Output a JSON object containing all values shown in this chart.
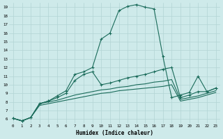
{
  "xlabel": "Humidex (Indice chaleur)",
  "bg_color": "#ceeaea",
  "grid_color": "#b2d4d4",
  "line_color": "#1a6b5a",
  "xlim_min": -0.5,
  "xlim_max": 23.5,
  "ylim_min": 5.5,
  "ylim_max": 19.5,
  "yticks": [
    6,
    7,
    8,
    9,
    10,
    11,
    12,
    13,
    14,
    15,
    16,
    17,
    18,
    19
  ],
  "xticks": [
    0,
    1,
    2,
    3,
    4,
    5,
    6,
    7,
    8,
    9,
    10,
    11,
    12,
    13,
    14,
    15,
    16,
    17,
    18,
    19,
    20,
    21,
    22,
    23
  ],
  "line_main_x": [
    0,
    1,
    2,
    3,
    4,
    5,
    6,
    7,
    8,
    9,
    10,
    11,
    12,
    13,
    14,
    15,
    16,
    17,
    18,
    19,
    20,
    21,
    22,
    23
  ],
  "line_main_y": [
    6.1,
    5.8,
    6.2,
    7.8,
    8.1,
    8.7,
    9.3,
    11.2,
    11.5,
    12.0,
    15.3,
    16.0,
    18.6,
    19.1,
    19.3,
    19.0,
    18.8,
    13.3,
    8.5,
    8.8,
    9.1,
    11.0,
    9.2,
    9.6
  ],
  "line2_x": [
    0,
    1,
    2,
    3,
    4,
    5,
    6,
    7,
    8,
    9,
    10,
    11,
    12,
    13,
    14,
    15,
    16,
    17,
    18,
    19,
    20,
    21,
    22,
    23
  ],
  "line2_y": [
    6.1,
    5.8,
    6.2,
    7.8,
    8.1,
    8.5,
    9.0,
    10.5,
    11.2,
    11.5,
    10.0,
    10.2,
    10.5,
    10.8,
    11.0,
    11.2,
    11.5,
    11.8,
    12.0,
    8.5,
    8.8,
    9.2,
    9.2,
    9.6
  ],
  "line3_x": [
    0,
    1,
    2,
    3,
    4,
    5,
    6,
    7,
    8,
    9,
    10,
    11,
    12,
    13,
    14,
    15,
    16,
    17,
    18,
    19,
    20,
    21,
    22,
    23
  ],
  "line3_y": [
    6.1,
    5.8,
    6.2,
    7.8,
    8.0,
    8.2,
    8.5,
    8.8,
    9.0,
    9.2,
    9.4,
    9.5,
    9.7,
    9.8,
    10.0,
    10.1,
    10.3,
    10.4,
    10.6,
    8.3,
    8.5,
    8.7,
    9.0,
    9.3
  ],
  "line4_x": [
    0,
    1,
    2,
    3,
    4,
    5,
    6,
    7,
    8,
    9,
    10,
    11,
    12,
    13,
    14,
    15,
    16,
    17,
    18,
    19,
    20,
    21,
    22,
    23
  ],
  "line4_y": [
    6.1,
    5.8,
    6.2,
    7.6,
    7.8,
    8.0,
    8.2,
    8.4,
    8.6,
    8.8,
    9.0,
    9.1,
    9.3,
    9.4,
    9.5,
    9.6,
    9.7,
    9.8,
    10.0,
    8.1,
    8.3,
    8.5,
    8.8,
    9.1
  ],
  "marker": "+",
  "marker_size": 3.5,
  "linewidth": 0.8
}
